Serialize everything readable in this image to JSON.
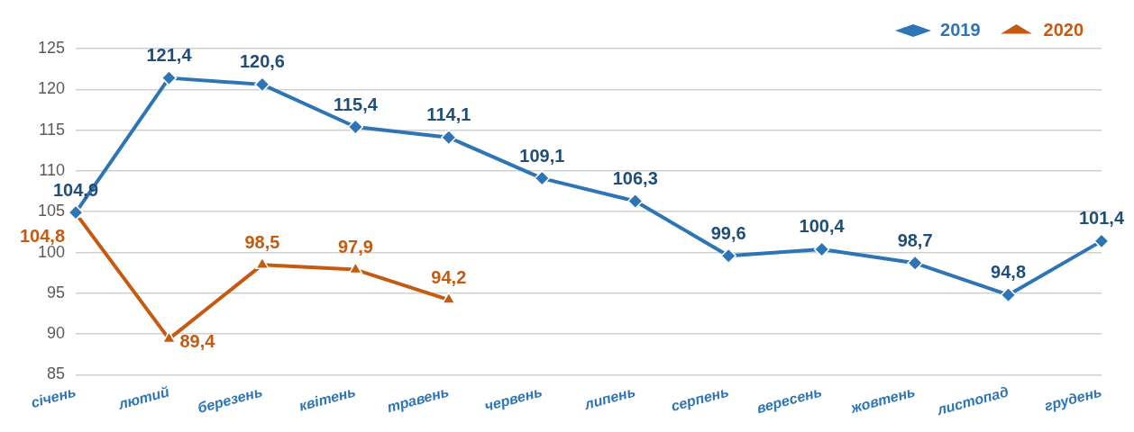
{
  "chart_data": {
    "type": "line",
    "categories": [
      "січень",
      "лютий",
      "березень",
      "квітень",
      "травень",
      "червень",
      "липень",
      "серпень",
      "вересень",
      "жовтень",
      "листопад",
      "грудень"
    ],
    "series": [
      {
        "name": "2019",
        "color": "#2e75b6",
        "marker": "diamond",
        "values": [
          104.9,
          121.4,
          120.6,
          115.4,
          114.1,
          109.1,
          106.3,
          99.6,
          100.4,
          98.7,
          94.8,
          101.4
        ],
        "value_labels": [
          "104,9",
          "121,4",
          "120,6",
          "115,4",
          "114,1",
          "109,1",
          "106,3",
          "99,6",
          "100,4",
          "98,7",
          "94,8",
          "101,4"
        ]
      },
      {
        "name": "2020",
        "color": "#c55a11",
        "marker": "triangle",
        "values": [
          104.8,
          89.4,
          98.5,
          97.9,
          94.2,
          null,
          null,
          null,
          null,
          null,
          null,
          null
        ],
        "value_labels": [
          "104,8",
          "89,4",
          "98,5",
          "97,9",
          "94,2",
          null,
          null,
          null,
          null,
          null,
          null,
          null
        ]
      }
    ],
    "ylim": [
      85,
      125
    ],
    "yticks": [
      85,
      90,
      95,
      100,
      105,
      110,
      115,
      120,
      125
    ],
    "grid": "y",
    "legend": "top right"
  }
}
